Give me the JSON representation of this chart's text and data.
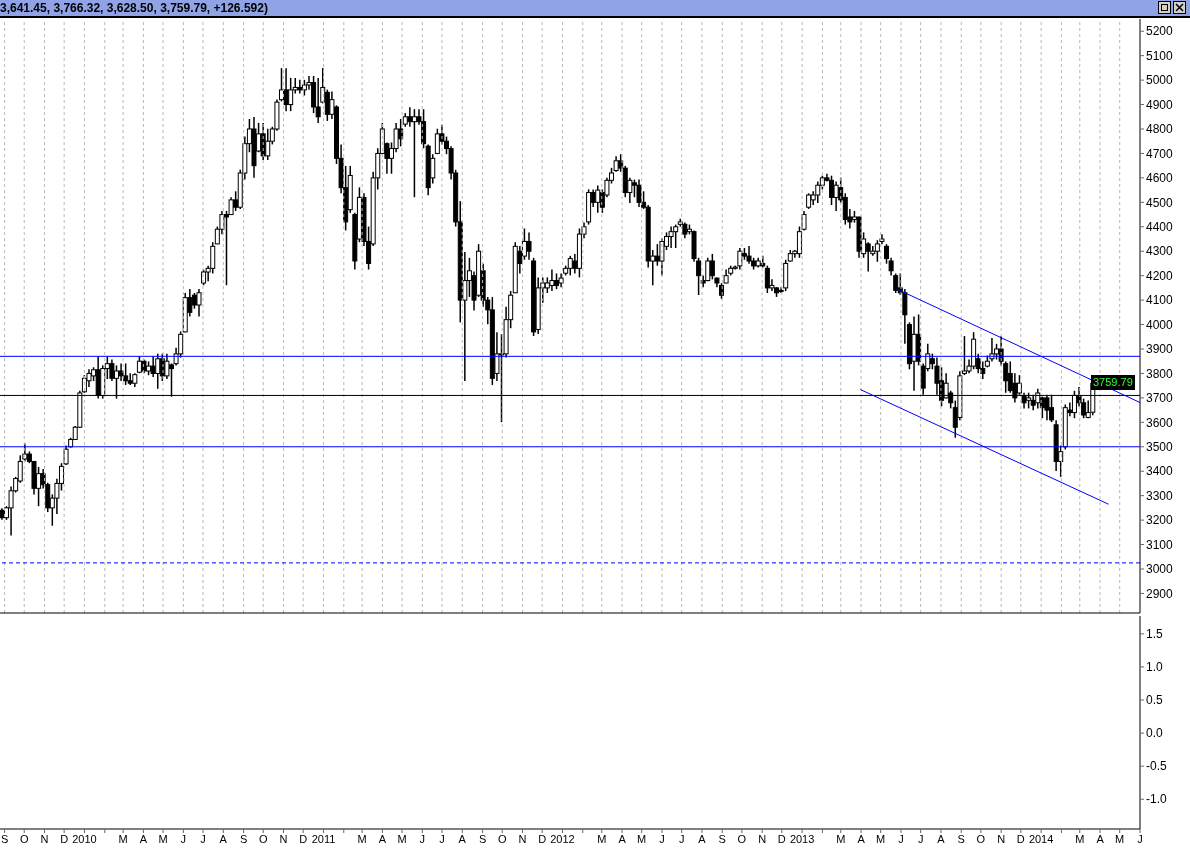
{
  "chart_data": [
    {
      "type": "candlestick",
      "title": "3,641.45, 3,766.32, 3,628.50, 3,759.79, +126.592)",
      "color": "#000000",
      "x": [
        "2009-08-28",
        "2009-09-04",
        "2009-09-11",
        "2009-09-18",
        "2009-09-25",
        "2009-10-02",
        "2009-10-09",
        "2009-10-16",
        "2009-10-23",
        "2009-10-30",
        "2009-11-06",
        "2009-11-13",
        "2009-11-20",
        "2009-11-27",
        "2009-12-04",
        "2009-12-11",
        "2009-12-18",
        "2009-12-25",
        "2010-01-01",
        "2010-01-08",
        "2010-01-15",
        "2010-01-22",
        "2010-01-29",
        "2010-02-05",
        "2010-02-12",
        "2010-02-19",
        "2010-02-26",
        "2010-03-05",
        "2010-03-12",
        "2010-03-19",
        "2010-03-26",
        "2010-04-02",
        "2010-04-09",
        "2010-04-16",
        "2010-04-23",
        "2010-04-30",
        "2010-05-07",
        "2010-05-14",
        "2010-05-21",
        "2010-05-28",
        "2010-06-04",
        "2010-06-11",
        "2010-06-18",
        "2010-06-25",
        "2010-07-02",
        "2010-07-09",
        "2010-07-16",
        "2010-07-23",
        "2010-07-30",
        "2010-08-06",
        "2010-08-13",
        "2010-08-20",
        "2010-08-27",
        "2010-09-03",
        "2010-09-10",
        "2010-09-17",
        "2010-09-24",
        "2010-10-01",
        "2010-10-08",
        "2010-10-15",
        "2010-10-22",
        "2010-10-29",
        "2010-11-05",
        "2010-11-12",
        "2010-11-19",
        "2010-11-26",
        "2010-12-03",
        "2010-12-10",
        "2010-12-17",
        "2010-12-24",
        "2010-12-31",
        "2011-01-07",
        "2011-01-14",
        "2011-01-21",
        "2011-01-28",
        "2011-02-04",
        "2011-02-11",
        "2011-02-18",
        "2011-02-25",
        "2011-03-04",
        "2011-03-11",
        "2011-03-18",
        "2011-03-25",
        "2011-04-01",
        "2011-04-08",
        "2011-04-15",
        "2011-04-22",
        "2011-04-29",
        "2011-05-06",
        "2011-05-13",
        "2011-05-20",
        "2011-05-27",
        "2011-06-03",
        "2011-06-10",
        "2011-06-17",
        "2011-06-24",
        "2011-07-01",
        "2011-07-08",
        "2011-07-15",
        "2011-07-22",
        "2011-07-29",
        "2011-08-05",
        "2011-08-12",
        "2011-08-19",
        "2011-08-26",
        "2011-09-02",
        "2011-09-09",
        "2011-09-16",
        "2011-09-23",
        "2011-09-30",
        "2011-10-07",
        "2011-10-14",
        "2011-10-21",
        "2011-10-28",
        "2011-11-04",
        "2011-11-11",
        "2011-11-18",
        "2011-11-25",
        "2011-12-02",
        "2011-12-09",
        "2011-12-16",
        "2011-12-23",
        "2011-12-30",
        "2012-01-06",
        "2012-01-13",
        "2012-01-20",
        "2012-01-27",
        "2012-02-03",
        "2012-02-10",
        "2012-02-17",
        "2012-02-24",
        "2012-03-02",
        "2012-03-09",
        "2012-03-16",
        "2012-03-23",
        "2012-03-30",
        "2012-04-06",
        "2012-04-13",
        "2012-04-20",
        "2012-04-27",
        "2012-05-04",
        "2012-05-11",
        "2012-05-18",
        "2012-05-25",
        "2012-06-01",
        "2012-06-08",
        "2012-06-15",
        "2012-06-22",
        "2012-06-29",
        "2012-07-06",
        "2012-07-13",
        "2012-07-20",
        "2012-07-27",
        "2012-08-03",
        "2012-08-10",
        "2012-08-17",
        "2012-08-24",
        "2012-08-31",
        "2012-09-07",
        "2012-09-14",
        "2012-09-21",
        "2012-09-28",
        "2012-10-05",
        "2012-10-12",
        "2012-10-19",
        "2012-10-26",
        "2012-11-02",
        "2012-11-09",
        "2012-11-16",
        "2012-11-23",
        "2012-11-30",
        "2012-12-07",
        "2012-12-14",
        "2012-12-21",
        "2012-12-28",
        "2013-01-04",
        "2013-01-11",
        "2013-01-18",
        "2013-01-25",
        "2013-02-01",
        "2013-02-08",
        "2013-02-15",
        "2013-02-22",
        "2013-03-01",
        "2013-03-08",
        "2013-03-15",
        "2013-03-22",
        "2013-03-29",
        "2013-04-05",
        "2013-04-12",
        "2013-04-19",
        "2013-04-26",
        "2013-05-03",
        "2013-05-10",
        "2013-05-17",
        "2013-05-24",
        "2013-05-31",
        "2013-06-07",
        "2013-06-14",
        "2013-06-21",
        "2013-06-28",
        "2013-07-05",
        "2013-07-12",
        "2013-07-19",
        "2013-07-26",
        "2013-08-02",
        "2013-08-09",
        "2013-08-16",
        "2013-08-23",
        "2013-08-30",
        "2013-09-06",
        "2013-09-13",
        "2013-09-20",
        "2013-09-27",
        "2013-10-04",
        "2013-10-11",
        "2013-10-18",
        "2013-10-25",
        "2013-11-01",
        "2013-11-08",
        "2013-11-15",
        "2013-11-22",
        "2013-11-29",
        "2013-12-06",
        "2013-12-13",
        "2013-12-20",
        "2013-12-27",
        "2014-01-03",
        "2014-01-10",
        "2014-01-17",
        "2014-01-24",
        "2014-01-31",
        "2014-02-07",
        "2014-02-14",
        "2014-02-21",
        "2014-02-28",
        "2014-03-07",
        "2014-03-14",
        "2014-03-21"
      ],
      "ohlc": [
        [
          3240,
          3249,
          3201,
          3210
        ],
        [
          3210,
          3257,
          3201,
          3250
        ],
        [
          3250,
          3337,
          3137,
          3320
        ],
        [
          3320,
          3377,
          3313,
          3370
        ],
        [
          3360,
          3465,
          3353,
          3440
        ],
        [
          3450,
          3513,
          3441,
          3470
        ],
        [
          3470,
          3481,
          3433,
          3440
        ],
        [
          3440,
          3441,
          3305,
          3330
        ],
        [
          3330,
          3417,
          3257,
          3390
        ],
        [
          3390,
          3409,
          3329,
          3345
        ],
        [
          3345,
          3353,
          3233,
          3250
        ],
        [
          3250,
          3305,
          3177,
          3290
        ],
        [
          3290,
          3369,
          3225,
          3350
        ],
        [
          3350,
          3433,
          3321,
          3420
        ],
        [
          3430,
          3505,
          3425,
          3490
        ],
        [
          3500,
          3537,
          3497,
          3530
        ],
        [
          3530,
          3585,
          3529,
          3580
        ],
        [
          3580,
          3729,
          3577,
          3720
        ],
        [
          3725,
          3793,
          3721,
          3780
        ],
        [
          3770,
          3817,
          3745,
          3800
        ],
        [
          3790,
          3825,
          3769,
          3815
        ],
        [
          3815,
          3870,
          3697,
          3710
        ],
        [
          3710,
          3833,
          3697,
          3820
        ],
        [
          3820,
          3870,
          3777,
          3840
        ],
        [
          3840,
          3857,
          3769,
          3780
        ],
        [
          3780,
          3833,
          3697,
          3810
        ],
        [
          3810,
          3841,
          3769,
          3790
        ],
        [
          3790,
          3841,
          3753,
          3770
        ],
        [
          3770,
          3801,
          3753,
          3760
        ],
        [
          3760,
          3801,
          3745,
          3795
        ],
        [
          3805,
          3870,
          3801,
          3850
        ],
        [
          3850,
          3857,
          3801,
          3810
        ],
        [
          3810,
          3849,
          3793,
          3830
        ],
        [
          3830,
          3870,
          3785,
          3800
        ],
        [
          3800,
          3881,
          3737,
          3860
        ],
        [
          3860,
          3881,
          3769,
          3790
        ],
        [
          3790,
          3881,
          3777,
          3850
        ],
        [
          3835,
          3841,
          3705,
          3820
        ],
        [
          3840,
          3905,
          3833,
          3880
        ],
        [
          3880,
          3972,
          3865,
          3960
        ],
        [
          3970,
          4129,
          3969,
          4110
        ],
        [
          4110,
          4145,
          4033,
          4050
        ],
        [
          4120,
          4129,
          4065,
          4080
        ],
        [
          4080,
          4145,
          4033,
          4130
        ],
        [
          4170,
          4225,
          4161,
          4215
        ],
        [
          4215,
          4241,
          4177,
          4230
        ],
        [
          4230,
          4337,
          4209,
          4320
        ],
        [
          4330,
          4401,
          4329,
          4390
        ],
        [
          4390,
          4465,
          4369,
          4450
        ],
        [
          4450,
          4465,
          4161,
          4440
        ],
        [
          4450,
          4521,
          4449,
          4510
        ],
        [
          4510,
          4545,
          4465,
          4480
        ],
        [
          4480,
          4633,
          4473,
          4620
        ],
        [
          4620,
          4769,
          4593,
          4740
        ],
        [
          4740,
          4841,
          4705,
          4800
        ],
        [
          4800,
          4849,
          4601,
          4650
        ],
        [
          4710,
          4825,
          4705,
          4780
        ],
        [
          4780,
          4825,
          4673,
          4690
        ],
        [
          4690,
          4801,
          4673,
          4750
        ],
        [
          4750,
          4809,
          4737,
          4800
        ],
        [
          4800,
          4921,
          4793,
          4910
        ],
        [
          4920,
          5049,
          4913,
          4960
        ],
        [
          4960,
          5049,
          4873,
          4900
        ],
        [
          4900,
          5009,
          4873,
          4960
        ],
        [
          4960,
          5009,
          4945,
          4970
        ],
        [
          4970,
          5001,
          4945,
          4960
        ],
        [
          4960,
          5001,
          4937,
          4980
        ],
        [
          4980,
          5017,
          4961,
          4990
        ],
        [
          4990,
          5017,
          4865,
          4890
        ],
        [
          4890,
          5009,
          4825,
          4850
        ],
        [
          4910,
          5049,
          4905,
          4970
        ],
        [
          4950,
          4961,
          4833,
          4860
        ],
        [
          4860,
          4953,
          4841,
          4920
        ],
        [
          4890,
          4897,
          4657,
          4680
        ],
        [
          4680,
          4737,
          4537,
          4560
        ],
        [
          4560,
          4649,
          4385,
          4420
        ],
        [
          4470,
          4649,
          4457,
          4610
        ],
        [
          4450,
          4457,
          4225,
          4260
        ],
        [
          4350,
          4561,
          4337,
          4520
        ],
        [
          4520,
          4537,
          4321,
          4340
        ],
        [
          4340,
          4401,
          4225,
          4250
        ],
        [
          4330,
          4625,
          4321,
          4600
        ],
        [
          4600,
          4721,
          4553,
          4700
        ],
        [
          4700,
          4825,
          4697,
          4800
        ],
        [
          4740,
          4745,
          4617,
          4680
        ],
        [
          4680,
          4745,
          4617,
          4720
        ],
        [
          4720,
          4825,
          4705,
          4800
        ],
        [
          4800,
          4841,
          4729,
          4760
        ],
        [
          4820,
          4865,
          4809,
          4850
        ],
        [
          4850,
          4889,
          4809,
          4830
        ],
        [
          4830,
          4881,
          4521,
          4850
        ],
        [
          4850,
          4881,
          4817,
          4830
        ],
        [
          4830,
          4881,
          4721,
          4740
        ],
        [
          4730,
          4737,
          4529,
          4560
        ],
        [
          4600,
          4697,
          4577,
          4680
        ],
        [
          4700,
          4801,
          4697,
          4780
        ],
        [
          4780,
          4817,
          4737,
          4750
        ],
        [
          4750,
          4769,
          4697,
          4720
        ],
        [
          4720,
          4729,
          4593,
          4620
        ],
        [
          4620,
          4633,
          4401,
          4420
        ],
        [
          4420,
          4505,
          4009,
          4100
        ],
        [
          4100,
          4297,
          3769,
          4180
        ],
        [
          4180,
          4273,
          4113,
          4220
        ],
        [
          4200,
          4217,
          4057,
          4100
        ],
        [
          4120,
          4329,
          4113,
          4300
        ],
        [
          4220,
          4249,
          4073,
          4100
        ],
        [
          4100,
          4113,
          4001,
          4060
        ],
        [
          4060,
          4113,
          3753,
          3780
        ],
        [
          3800,
          3969,
          3769,
          3880
        ],
        [
          3880,
          3961,
          3601,
          3880
        ],
        [
          3880,
          4073,
          3865,
          4020
        ],
        [
          4020,
          4137,
          3985,
          4120
        ],
        [
          4130,
          4337,
          4129,
          4320
        ],
        [
          4300,
          4321,
          4209,
          4250
        ],
        [
          4280,
          4393,
          4265,
          4340
        ],
        [
          4340,
          4377,
          4265,
          4300
        ],
        [
          4260,
          4273,
          3953,
          3970
        ],
        [
          3980,
          4193,
          3961,
          4150
        ],
        [
          4150,
          4193,
          4089,
          4170
        ],
        [
          4150,
          4193,
          4129,
          4170
        ],
        [
          4160,
          4225,
          4137,
          4180
        ],
        [
          4180,
          4209,
          4145,
          4160
        ],
        [
          4170,
          4209,
          4153,
          4190
        ],
        [
          4210,
          4241,
          4201,
          4230
        ],
        [
          4230,
          4281,
          4201,
          4270
        ],
        [
          4260,
          4289,
          4209,
          4230
        ],
        [
          4230,
          4393,
          4193,
          4370
        ],
        [
          4370,
          4417,
          4353,
          4400
        ],
        [
          4420,
          4553,
          4409,
          4540
        ],
        [
          4540,
          4553,
          4481,
          4500
        ],
        [
          4500,
          4569,
          4457,
          4550
        ],
        [
          4540,
          4553,
          4457,
          4480
        ],
        [
          4530,
          4601,
          4521,
          4590
        ],
        [
          4590,
          4641,
          4577,
          4620
        ],
        [
          4630,
          4689,
          4625,
          4670
        ],
        [
          4670,
          4697,
          4625,
          4640
        ],
        [
          4640,
          4649,
          4521,
          4540
        ],
        [
          4540,
          4601,
          4497,
          4590
        ],
        [
          4580,
          4593,
          4521,
          4570
        ],
        [
          4570,
          4593,
          4481,
          4500
        ],
        [
          4500,
          4545,
          4473,
          4480
        ],
        [
          4480,
          4489,
          4233,
          4260
        ],
        [
          4260,
          4305,
          4161,
          4280
        ],
        [
          4280,
          4329,
          4241,
          4260
        ],
        [
          4260,
          4353,
          4201,
          4340
        ],
        [
          4320,
          4377,
          4305,
          4360
        ],
        [
          4360,
          4401,
          4313,
          4380
        ],
        [
          4380,
          4409,
          4313,
          4400
        ],
        [
          4410,
          4433,
          4401,
          4420
        ],
        [
          4410,
          4417,
          4353,
          4370
        ],
        [
          4380,
          4409,
          4369,
          4390
        ],
        [
          4380,
          4385,
          4257,
          4270
        ],
        [
          4260,
          4273,
          4121,
          4200
        ],
        [
          4180,
          4201,
          4153,
          4170
        ],
        [
          4180,
          4273,
          4177,
          4260
        ],
        [
          4260,
          4289,
          4185,
          4200
        ],
        [
          4190,
          4193,
          4153,
          4170
        ],
        [
          4160,
          4169,
          4105,
          4120
        ],
        [
          4170,
          4225,
          4169,
          4200
        ],
        [
          4210,
          4241,
          4201,
          4230
        ],
        [
          4230,
          4241,
          4225,
          4235
        ],
        [
          4240,
          4313,
          4225,
          4300
        ],
        [
          4290,
          4313,
          4265,
          4280
        ],
        [
          4280,
          4321,
          4249,
          4260
        ],
        [
          4260,
          4273,
          4225,
          4240
        ],
        [
          4240,
          4273,
          4233,
          4260
        ],
        [
          4250,
          4281,
          4233,
          4240
        ],
        [
          4230,
          4241,
          4129,
          4150
        ],
        [
          4150,
          4185,
          4137,
          4160
        ],
        [
          4150,
          4153,
          4113,
          4130
        ],
        [
          4140,
          4153,
          4129,
          4135
        ],
        [
          4150,
          4265,
          4137,
          4250
        ],
        [
          4260,
          4305,
          4257,
          4290
        ],
        [
          4290,
          4305,
          4273,
          4300
        ],
        [
          4290,
          4401,
          4273,
          4380
        ],
        [
          4390,
          4465,
          4385,
          4450
        ],
        [
          4480,
          4537,
          4473,
          4530
        ],
        [
          4510,
          4545,
          4489,
          4530
        ],
        [
          4530,
          4585,
          4497,
          4570
        ],
        [
          4570,
          4609,
          4553,
          4600
        ],
        [
          4600,
          4617,
          4585,
          4590
        ],
        [
          4590,
          4609,
          4489,
          4520
        ],
        [
          4520,
          4585,
          4465,
          4570
        ],
        [
          4560,
          4601,
          4497,
          4510
        ],
        [
          4520,
          4537,
          4409,
          4430
        ],
        [
          4440,
          4473,
          4393,
          4420
        ],
        [
          4430,
          4465,
          4417,
          4440
        ],
        [
          4440,
          4441,
          4273,
          4300
        ],
        [
          4290,
          4377,
          4273,
          4350
        ],
        [
          4330,
          4337,
          4217,
          4300
        ],
        [
          4290,
          4321,
          4281,
          4300
        ],
        [
          4300,
          4345,
          4257,
          4330
        ],
        [
          4340,
          4369,
          4329,
          4350
        ],
        [
          4320,
          4329,
          4249,
          4270
        ],
        [
          4260,
          4273,
          4201,
          4220
        ],
        [
          4200,
          4209,
          4129,
          4140
        ],
        [
          4150,
          4209,
          4121,
          4130
        ],
        [
          4130,
          4145,
          3921,
          4040
        ],
        [
          4000,
          4009,
          3817,
          3840
        ],
        [
          3850,
          4033,
          3729,
          3960
        ],
        [
          3960,
          4041,
          3833,
          3850
        ],
        [
          3830,
          3841,
          3713,
          3740
        ],
        [
          3820,
          3921,
          3809,
          3880
        ],
        [
          3860,
          3881,
          3817,
          3840
        ],
        [
          3830,
          3865,
          3713,
          3760
        ],
        [
          3770,
          3825,
          3665,
          3690
        ],
        [
          3700,
          3801,
          3697,
          3760
        ],
        [
          3720,
          3729,
          3657,
          3680
        ],
        [
          3660,
          3689,
          3537,
          3580
        ],
        [
          3620,
          3809,
          3609,
          3790
        ],
        [
          3800,
          3953,
          3793,
          3810
        ],
        [
          3810,
          3857,
          3801,
          3830
        ],
        [
          3830,
          3969,
          3817,
          3940
        ],
        [
          3860,
          3881,
          3801,
          3820
        ],
        [
          3820,
          3849,
          3777,
          3800
        ],
        [
          3830,
          3873,
          3825,
          3850
        ],
        [
          3860,
          3945,
          3849,
          3880
        ],
        [
          3880,
          3921,
          3857,
          3900
        ],
        [
          3900,
          3953,
          3833,
          3850
        ],
        [
          3840,
          3849,
          3721,
          3770
        ],
        [
          3800,
          3849,
          3721,
          3730
        ],
        [
          3760,
          3801,
          3681,
          3700
        ],
        [
          3720,
          3793,
          3713,
          3760
        ],
        [
          3710,
          3721,
          3657,
          3680
        ],
        [
          3690,
          3721,
          3657,
          3700
        ],
        [
          3690,
          3713,
          3649,
          3670
        ],
        [
          3680,
          3737,
          3657,
          3720
        ],
        [
          3700,
          3705,
          3617,
          3660
        ],
        [
          3700,
          3713,
          3609,
          3650
        ],
        [
          3660,
          3713,
          3601,
          3610
        ],
        [
          3590,
          3609,
          3401,
          3440
        ],
        [
          3440,
          3505,
          3377,
          3480
        ],
        [
          3500,
          3673,
          3489,
          3660
        ],
        [
          3650,
          3681,
          3625,
          3640
        ],
        [
          3640,
          3729,
          3617,
          3710
        ],
        [
          3710,
          3745,
          3665,
          3680
        ],
        [
          3680,
          3697,
          3617,
          3630
        ],
        [
          3620,
          3689,
          3617,
          3640
        ],
        [
          3641.45,
          3766.32,
          3628.5,
          3759.79
        ]
      ],
      "series": [
        {
          "type": "line",
          "color": "#0000ff",
          "x": [
            "2013-05-26",
            "2014-06-01"
          ],
          "values": [
            4145,
            3681
          ]
        },
        {
          "type": "line",
          "color": "#0000ff",
          "x": [
            "2013-03-31",
            "2014-04-14"
          ],
          "values": [
            3734,
            3265
          ]
        }
      ],
      "ref_lines": [
        {
          "axis": "y",
          "value": 3870,
          "color": "#0000ff",
          "line_style": "solid"
        },
        {
          "axis": "y",
          "value": 3710,
          "color": "#000000",
          "line_style": "solid"
        },
        {
          "axis": "y",
          "value": 3500,
          "color": "#0000ff",
          "line_style": "solid"
        },
        {
          "axis": "y",
          "value": 3025,
          "color": "#0000ff",
          "line_style": "dashed"
        }
      ],
      "annotations": [
        {
          "text": "3759.79",
          "y": 3759.79
        }
      ],
      "xlim": [
        "2009-08-25",
        "2014-06-01"
      ],
      "xticks": [
        {
          "value": "2009-09",
          "label": null
        },
        {
          "value": "2009-10",
          "label": null
        },
        {
          "value": "2009-11",
          "label": null
        },
        {
          "value": "2009-12",
          "label": null
        },
        {
          "value": "2010-01",
          "label": null
        },
        {
          "value": "2010-02",
          "label": null
        },
        {
          "value": "2010-03",
          "label": null
        },
        {
          "value": "2010-04",
          "label": null
        },
        {
          "value": "2010-05",
          "label": null
        },
        {
          "value": "2010-06",
          "label": null
        },
        {
          "value": "2010-07",
          "label": null
        },
        {
          "value": "2010-08",
          "label": null
        },
        {
          "value": "2010-09",
          "label": null
        },
        {
          "value": "2010-10",
          "label": null
        },
        {
          "value": "2010-11",
          "label": null
        },
        {
          "value": "2010-12",
          "label": null
        },
        {
          "value": "2011-01",
          "label": null
        },
        {
          "value": "2011-02",
          "label": null
        },
        {
          "value": "2011-03",
          "label": null
        },
        {
          "value": "2011-04",
          "label": null
        },
        {
          "value": "2011-05",
          "label": null
        },
        {
          "value": "2011-06",
          "label": null
        },
        {
          "value": "2011-07",
          "label": null
        },
        {
          "value": "2011-08",
          "label": null
        },
        {
          "value": "2011-09",
          "label": null
        },
        {
          "value": "2011-10",
          "label": null
        },
        {
          "value": "2011-11",
          "label": null
        },
        {
          "value": "2011-12",
          "label": null
        },
        {
          "value": "2012-01",
          "label": null
        },
        {
          "value": "2012-02",
          "label": null
        },
        {
          "value": "2012-03",
          "label": null
        },
        {
          "value": "2012-04",
          "label": null
        },
        {
          "value": "2012-05",
          "label": null
        },
        {
          "value": "2012-06",
          "label": null
        },
        {
          "value": "2012-07",
          "label": null
        },
        {
          "value": "2012-08",
          "label": null
        },
        {
          "value": "2012-09",
          "label": null
        },
        {
          "value": "2012-10",
          "label": null
        },
        {
          "value": "2012-11",
          "label": null
        },
        {
          "value": "2012-12",
          "label": null
        },
        {
          "value": "2013-01",
          "label": null
        },
        {
          "value": "2013-02",
          "label": null
        },
        {
          "value": "2013-03",
          "label": null
        },
        {
          "value": "2013-04",
          "label": null
        },
        {
          "value": "2013-05",
          "label": null
        },
        {
          "value": "2013-06",
          "label": null
        },
        {
          "value": "2013-07",
          "label": null
        },
        {
          "value": "2013-08",
          "label": null
        },
        {
          "value": "2013-09",
          "label": null
        },
        {
          "value": "2013-10",
          "label": null
        },
        {
          "value": "2013-11",
          "label": null
        },
        {
          "value": "2013-12",
          "label": null
        },
        {
          "value": "2014-01",
          "label": null
        },
        {
          "value": "2014-02",
          "label": null
        },
        {
          "value": "2014-03",
          "label": null
        },
        {
          "value": "2014-04",
          "label": null
        },
        {
          "value": "2014-05",
          "label": null
        }
      ],
      "ylim": [
        2820,
        5250
      ],
      "yticks": [
        2900,
        3000,
        3100,
        3200,
        3300,
        3400,
        3500,
        3600,
        3700,
        3800,
        3900,
        4000,
        4100,
        4200,
        4300,
        4400,
        4500,
        4600,
        4700,
        4800,
        4900,
        5000,
        5100,
        5200
      ],
      "grid": "x",
      "tick_labels": "y"
    },
    {
      "type": "line",
      "xlim": [
        "2009-08-25",
        "2014-06-01"
      ],
      "xticks": [
        {
          "value": "2009-09",
          "label": "S"
        },
        {
          "value": "2009-10",
          "label": "O"
        },
        {
          "value": "2009-11",
          "label": "N"
        },
        {
          "value": "2009-12",
          "label": "D"
        },
        {
          "value": "2010-01",
          "label": "2010"
        },
        {
          "value": "2010-02",
          "label": null
        },
        {
          "value": "2010-03",
          "label": "M"
        },
        {
          "value": "2010-04",
          "label": "A"
        },
        {
          "value": "2010-05",
          "label": "M"
        },
        {
          "value": "2010-06",
          "label": "J"
        },
        {
          "value": "2010-07",
          "label": "J"
        },
        {
          "value": "2010-08",
          "label": "A"
        },
        {
          "value": "2010-09",
          "label": "S"
        },
        {
          "value": "2010-10",
          "label": "O"
        },
        {
          "value": "2010-11",
          "label": "N"
        },
        {
          "value": "2010-12",
          "label": "D"
        },
        {
          "value": "2011-01",
          "label": "2011"
        },
        {
          "value": "2011-02",
          "label": null
        },
        {
          "value": "2011-03",
          "label": "M"
        },
        {
          "value": "2011-04",
          "label": "A"
        },
        {
          "value": "2011-05",
          "label": "M"
        },
        {
          "value": "2011-06",
          "label": "J"
        },
        {
          "value": "2011-07",
          "label": "J"
        },
        {
          "value": "2011-08",
          "label": "A"
        },
        {
          "value": "2011-09",
          "label": "S"
        },
        {
          "value": "2011-10",
          "label": "O"
        },
        {
          "value": "2011-11",
          "label": "N"
        },
        {
          "value": "2011-12",
          "label": "D"
        },
        {
          "value": "2012-01",
          "label": "2012"
        },
        {
          "value": "2012-02",
          "label": null
        },
        {
          "value": "2012-03",
          "label": "M"
        },
        {
          "value": "2012-04",
          "label": "A"
        },
        {
          "value": "2012-05",
          "label": "M"
        },
        {
          "value": "2012-06",
          "label": "J"
        },
        {
          "value": "2012-07",
          "label": "J"
        },
        {
          "value": "2012-08",
          "label": "A"
        },
        {
          "value": "2012-09",
          "label": "S"
        },
        {
          "value": "2012-10",
          "label": "O"
        },
        {
          "value": "2012-11",
          "label": "N"
        },
        {
          "value": "2012-12",
          "label": "D"
        },
        {
          "value": "2013-01",
          "label": "2013"
        },
        {
          "value": "2013-02",
          "label": null
        },
        {
          "value": "2013-03",
          "label": "M"
        },
        {
          "value": "2013-04",
          "label": "A"
        },
        {
          "value": "2013-05",
          "label": "M"
        },
        {
          "value": "2013-06",
          "label": "J"
        },
        {
          "value": "2013-07",
          "label": "J"
        },
        {
          "value": "2013-08",
          "label": "A"
        },
        {
          "value": "2013-09",
          "label": "S"
        },
        {
          "value": "2013-10",
          "label": "O"
        },
        {
          "value": "2013-11",
          "label": "N"
        },
        {
          "value": "2013-12",
          "label": "D"
        },
        {
          "value": "2014-01",
          "label": "2014"
        },
        {
          "value": "2014-02",
          "label": null
        },
        {
          "value": "2014-03",
          "label": "M"
        },
        {
          "value": "2014-04",
          "label": "A"
        },
        {
          "value": "2014-05",
          "label": "M"
        },
        {
          "value": "2014-06",
          "label": "J"
        }
      ],
      "ylim": [
        -1.45,
        1.77
      ],
      "yticks": [
        {
          "value": -1,
          "label": "-1.0"
        },
        {
          "value": -0.5,
          "label": "-0.5"
        },
        {
          "value": 0,
          "label": "0.0"
        },
        {
          "value": 0.5,
          "label": "0.5"
        },
        {
          "value": 1,
          "label": "1.0"
        },
        {
          "value": 1.5,
          "label": "1.5"
        }
      ]
    }
  ]
}
